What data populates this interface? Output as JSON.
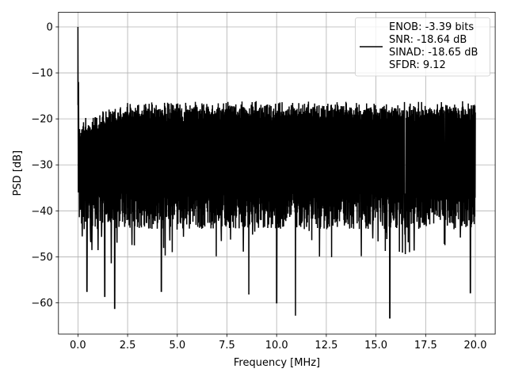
{
  "chart_data": {
    "type": "line",
    "title": "",
    "xlabel": "Frequency [MHz]",
    "ylabel": "PSD [dB]",
    "xlim": [
      -0.98,
      21.0
    ],
    "ylim": [
      -66.8,
      3.2
    ],
    "x_ticks": [
      0.0,
      2.5,
      5.0,
      7.5,
      10.0,
      12.5,
      15.0,
      17.5,
      20.0
    ],
    "x_tick_labels": [
      "0.0",
      "2.5",
      "5.0",
      "7.5",
      "10.0",
      "12.5",
      "15.0",
      "17.5",
      "20.0"
    ],
    "y_ticks": [
      0,
      -10,
      -20,
      -30,
      -40,
      -50,
      -60
    ],
    "y_tick_labels": [
      "0",
      "−10",
      "−20",
      "−30",
      "−40",
      "−50",
      "−60"
    ],
    "grid": true,
    "legend_position": "top-right",
    "series": [
      {
        "name": "ENOB: -3.39 bits\nSNR: -18.64 dB\nSINAD: -18.65 dB\nSFDR: 9.12",
        "color": "#000000",
        "description_of_trace": "dense noise-floor PSD trace",
        "x_range": [
          0.0,
          20.0
        ],
        "peak": {
          "x": 0.0,
          "y": 0.0
        },
        "notable_minima": [
          {
            "x": 0.45,
            "y": -57.5
          },
          {
            "x": 1.35,
            "y": -58.6
          },
          {
            "x": 1.85,
            "y": -61.2
          },
          {
            "x": 4.2,
            "y": -57.5
          },
          {
            "x": 8.6,
            "y": -58.2
          },
          {
            "x": 10.0,
            "y": -60.0
          },
          {
            "x": 10.95,
            "y": -62.8
          },
          {
            "x": 15.7,
            "y": -63.3
          },
          {
            "x": 19.75,
            "y": -57.8
          }
        ],
        "floor_band_upper": -17.5,
        "floor_band_lower": -42.0
      }
    ],
    "legend": {
      "lines": [
        "ENOB: -3.39 bits",
        "SNR: -18.64 dB",
        "SINAD: -18.65 dB",
        "SFDR: 9.12"
      ]
    }
  }
}
